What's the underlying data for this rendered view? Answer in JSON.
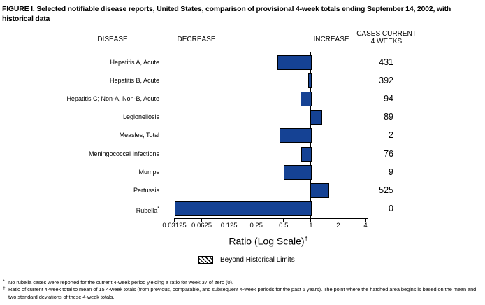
{
  "figure": {
    "title": "FIGURE I. Selected notifiable disease reports, United States, comparison of provisional 4-week totals ending September 14, 2002, with historical data"
  },
  "table_headers": {
    "disease": "DISEASE",
    "decrease": "DECREASE",
    "increase": "INCREASE",
    "cases_line1": "CASES CURRENT",
    "cases_line2": "4 WEEKS"
  },
  "chart_data": {
    "type": "bar",
    "orientation": "horizontal",
    "x_scale": "log2",
    "xlabel": "Ratio (Log Scale)",
    "xlabel_footnote_marker": "†",
    "baseline_ratio": 1,
    "x_ticks": [
      0.03125,
      0.0625,
      0.125,
      0.25,
      0.5,
      1,
      2,
      4
    ],
    "x_tick_labels": [
      "0.03125",
      "0.0625",
      "0.125",
      "0.25",
      "0.5",
      "1",
      "2",
      "4"
    ],
    "bar_color": "#154294",
    "rows": [
      {
        "disease": "Hepatitis A, Acute",
        "ratio": 0.43,
        "cases": "431"
      },
      {
        "disease": "Hepatitis B, Acute",
        "ratio": 0.93,
        "cases": "392"
      },
      {
        "disease": "Hepatitis C; Non-A, Non-B, Acute",
        "ratio": 0.77,
        "cases": "94"
      },
      {
        "disease": "Legionellosis",
        "ratio": 1.33,
        "cases": "89"
      },
      {
        "disease": "Measles, Total",
        "ratio": 0.45,
        "cases": "2"
      },
      {
        "disease": "Meningococcal Infections",
        "ratio": 0.78,
        "cases": "76"
      },
      {
        "disease": "Mumps",
        "ratio": 0.5,
        "cases": "9"
      },
      {
        "disease": "Pertussis",
        "ratio": 1.59,
        "cases": "525"
      },
      {
        "disease": "Rubella",
        "marker": "*",
        "ratio": 0,
        "cases": "0"
      }
    ],
    "legend": {
      "label": "Beyond Historical Limits",
      "pattern": "diagonal-hatch"
    }
  },
  "footnotes": [
    {
      "marker": "*",
      "text": "No rubella cases were reported for the current 4-week period yielding a ratio for week 37 of zero (0)."
    },
    {
      "marker": "†",
      "text": "Ratio of current 4-week total to mean of 15 4-week totals (from previous, comparable, and subsequent 4-week periods for the past 5 years). The point where the hatched area begins is based on the mean and two standard deviations of these 4-week totals."
    }
  ]
}
